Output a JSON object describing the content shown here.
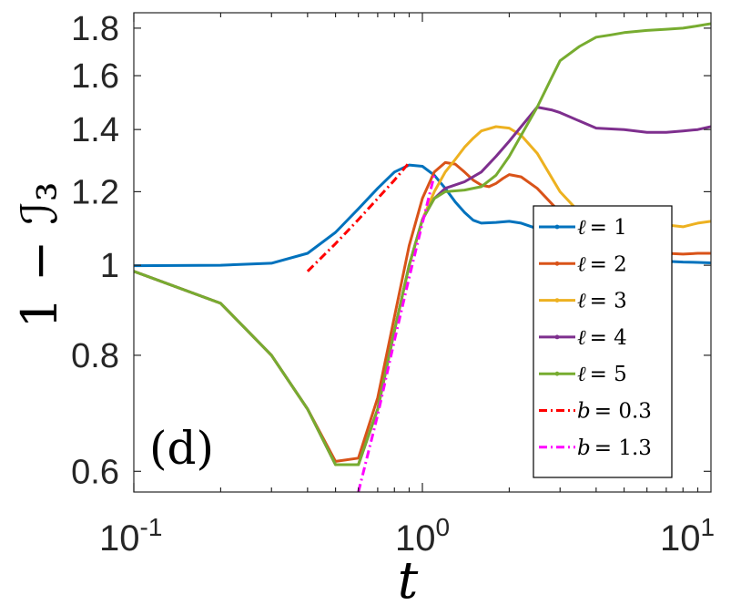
{
  "chart_data": {
    "type": "line",
    "panel_label": "(d)",
    "xlabel": "t",
    "ylabel": "1 − ℐ₃",
    "xscale": "log",
    "yscale": "log",
    "xlim": [
      0.1,
      10
    ],
    "ylim": [
      0.57,
      1.87
    ],
    "x_ticks": [
      {
        "value": 0.1,
        "base": "10",
        "exp": "-1"
      },
      {
        "value": 1,
        "base": "10",
        "exp": "0"
      },
      {
        "value": 10,
        "base": "10",
        "exp": "1"
      }
    ],
    "y_ticks": [
      {
        "value": 0.6,
        "label": "0.6"
      },
      {
        "value": 0.8,
        "label": "0.8"
      },
      {
        "value": 1.0,
        "label": "1"
      },
      {
        "value": 1.2,
        "label": "1.2"
      },
      {
        "value": 1.4,
        "label": "1.4"
      },
      {
        "value": 1.6,
        "label": "1.6"
      },
      {
        "value": 1.8,
        "label": "1.8"
      }
    ],
    "legend_position": "right",
    "series": [
      {
        "name": "ℓ = 1",
        "legend_var": "ℓ",
        "legend_val": "= 1",
        "color": "#0072BD",
        "style": "solid",
        "marker": "dot",
        "points": [
          [
            0.1,
            0.999
          ],
          [
            0.2,
            1.0
          ],
          [
            0.3,
            1.005
          ],
          [
            0.4,
            1.03
          ],
          [
            0.5,
            1.085
          ],
          [
            0.6,
            1.15
          ],
          [
            0.7,
            1.21
          ],
          [
            0.8,
            1.26
          ],
          [
            0.9,
            1.282
          ],
          [
            1.0,
            1.278
          ],
          [
            1.1,
            1.25
          ],
          [
            1.2,
            1.21
          ],
          [
            1.3,
            1.17
          ],
          [
            1.4,
            1.14
          ],
          [
            1.5,
            1.118
          ],
          [
            1.6,
            1.11
          ],
          [
            1.8,
            1.112
          ],
          [
            2.0,
            1.115
          ],
          [
            2.2,
            1.11
          ],
          [
            2.5,
            1.095
          ],
          [
            3,
            1.075
          ],
          [
            3.5,
            1.058
          ],
          [
            4,
            1.04
          ],
          [
            5,
            1.025
          ],
          [
            6,
            1.015
          ],
          [
            7,
            1.01
          ],
          [
            8,
            1.008
          ],
          [
            9,
            1.007
          ],
          [
            10,
            1.006
          ]
        ]
      },
      {
        "name": "ℓ = 2",
        "legend_var": "ℓ",
        "legend_val": "= 2",
        "color": "#D95319",
        "style": "solid",
        "marker": "dot",
        "points": [
          [
            0.1,
            0.985
          ],
          [
            0.2,
            0.91
          ],
          [
            0.3,
            0.8
          ],
          [
            0.4,
            0.7
          ],
          [
            0.5,
            0.615
          ],
          [
            0.6,
            0.62
          ],
          [
            0.7,
            0.72
          ],
          [
            0.8,
            0.88
          ],
          [
            0.9,
            1.05
          ],
          [
            1.0,
            1.18
          ],
          [
            1.1,
            1.26
          ],
          [
            1.2,
            1.29
          ],
          [
            1.3,
            1.285
          ],
          [
            1.4,
            1.26
          ],
          [
            1.5,
            1.235
          ],
          [
            1.6,
            1.22
          ],
          [
            1.7,
            1.215
          ],
          [
            1.8,
            1.225
          ],
          [
            1.9,
            1.24
          ],
          [
            2.0,
            1.252
          ],
          [
            2.2,
            1.245
          ],
          [
            2.5,
            1.21
          ],
          [
            3,
            1.14
          ],
          [
            3.5,
            1.08
          ],
          [
            4,
            1.05
          ],
          [
            5,
            1.035
          ],
          [
            6,
            1.032
          ],
          [
            7,
            1.03
          ],
          [
            8,
            1.028
          ],
          [
            9,
            1.03
          ],
          [
            10,
            1.03
          ]
        ]
      },
      {
        "name": "ℓ = 3",
        "legend_var": "ℓ",
        "legend_val": "= 3",
        "color": "#EDB120",
        "style": "solid",
        "marker": "dot",
        "points": [
          [
            0.1,
            0.985
          ],
          [
            0.2,
            0.91
          ],
          [
            0.3,
            0.8
          ],
          [
            0.4,
            0.7
          ],
          [
            0.5,
            0.61
          ],
          [
            0.6,
            0.61
          ],
          [
            0.7,
            0.7
          ],
          [
            0.8,
            0.85
          ],
          [
            0.9,
            1.0
          ],
          [
            1.0,
            1.12
          ],
          [
            1.1,
            1.2
          ],
          [
            1.2,
            1.26
          ],
          [
            1.3,
            1.3
          ],
          [
            1.4,
            1.34
          ],
          [
            1.5,
            1.37
          ],
          [
            1.6,
            1.395
          ],
          [
            1.8,
            1.41
          ],
          [
            2.0,
            1.405
          ],
          [
            2.2,
            1.38
          ],
          [
            2.5,
            1.32
          ],
          [
            3,
            1.2
          ],
          [
            3.5,
            1.14
          ],
          [
            4,
            1.12
          ],
          [
            5,
            1.11
          ],
          [
            6,
            1.11
          ],
          [
            7,
            1.105
          ],
          [
            8,
            1.1
          ],
          [
            9,
            1.11
          ],
          [
            10,
            1.115
          ]
        ]
      },
      {
        "name": "ℓ = 4",
        "legend_var": "ℓ",
        "legend_val": "= 4",
        "color": "#7E2F8E",
        "style": "solid",
        "marker": "dot",
        "points": [
          [
            0.1,
            0.985
          ],
          [
            0.2,
            0.91
          ],
          [
            0.3,
            0.8
          ],
          [
            0.4,
            0.7
          ],
          [
            0.5,
            0.61
          ],
          [
            0.6,
            0.61
          ],
          [
            0.7,
            0.7
          ],
          [
            0.8,
            0.85
          ],
          [
            0.9,
            1.0
          ],
          [
            1.0,
            1.12
          ],
          [
            1.1,
            1.18
          ],
          [
            1.2,
            1.21
          ],
          [
            1.4,
            1.23
          ],
          [
            1.6,
            1.26
          ],
          [
            1.8,
            1.31
          ],
          [
            2.0,
            1.36
          ],
          [
            2.2,
            1.41
          ],
          [
            2.5,
            1.48
          ],
          [
            2.8,
            1.47
          ],
          [
            3,
            1.46
          ],
          [
            3.5,
            1.43
          ],
          [
            4,
            1.405
          ],
          [
            5,
            1.4
          ],
          [
            6,
            1.39
          ],
          [
            7,
            1.39
          ],
          [
            8,
            1.395
          ],
          [
            9,
            1.4
          ],
          [
            10,
            1.41
          ]
        ]
      },
      {
        "name": "ℓ = 5",
        "legend_var": "ℓ",
        "legend_val": "= 5",
        "color": "#77AC30",
        "style": "solid",
        "marker": "dot",
        "points": [
          [
            0.1,
            0.985
          ],
          [
            0.2,
            0.91
          ],
          [
            0.3,
            0.8
          ],
          [
            0.4,
            0.7
          ],
          [
            0.5,
            0.61
          ],
          [
            0.6,
            0.61
          ],
          [
            0.7,
            0.7
          ],
          [
            0.8,
            0.85
          ],
          [
            0.9,
            1.0
          ],
          [
            1.0,
            1.12
          ],
          [
            1.1,
            1.18
          ],
          [
            1.2,
            1.2
          ],
          [
            1.4,
            1.205
          ],
          [
            1.6,
            1.215
          ],
          [
            1.8,
            1.25
          ],
          [
            2.0,
            1.31
          ],
          [
            2.2,
            1.38
          ],
          [
            2.5,
            1.48
          ],
          [
            2.8,
            1.59
          ],
          [
            3,
            1.66
          ],
          [
            3.5,
            1.72
          ],
          [
            4,
            1.76
          ],
          [
            4.5,
            1.77
          ],
          [
            5,
            1.78
          ],
          [
            6,
            1.79
          ],
          [
            7,
            1.795
          ],
          [
            8,
            1.8
          ],
          [
            9,
            1.81
          ],
          [
            10,
            1.82
          ]
        ]
      },
      {
        "name": "b = 0.3",
        "legend_var": "b",
        "legend_val": "= 0.3",
        "color": "#FF0000",
        "style": "dashdot",
        "marker": "none",
        "points": [
          [
            0.4,
            0.985
          ],
          [
            0.5,
            1.055
          ],
          [
            0.6,
            1.12
          ],
          [
            0.7,
            1.18
          ],
          [
            0.8,
            1.235
          ],
          [
            0.9,
            1.29
          ]
        ]
      },
      {
        "name": "b = 1.3",
        "legend_var": "b",
        "legend_val": "= 1.3",
        "color": "#FF00FF",
        "style": "dashdot",
        "marker": "none",
        "points": [
          [
            0.6,
            0.57
          ],
          [
            0.7,
            0.69
          ],
          [
            0.8,
            0.83
          ],
          [
            0.9,
            0.97
          ],
          [
            1.0,
            1.11
          ],
          [
            1.1,
            1.25
          ]
        ]
      }
    ]
  }
}
